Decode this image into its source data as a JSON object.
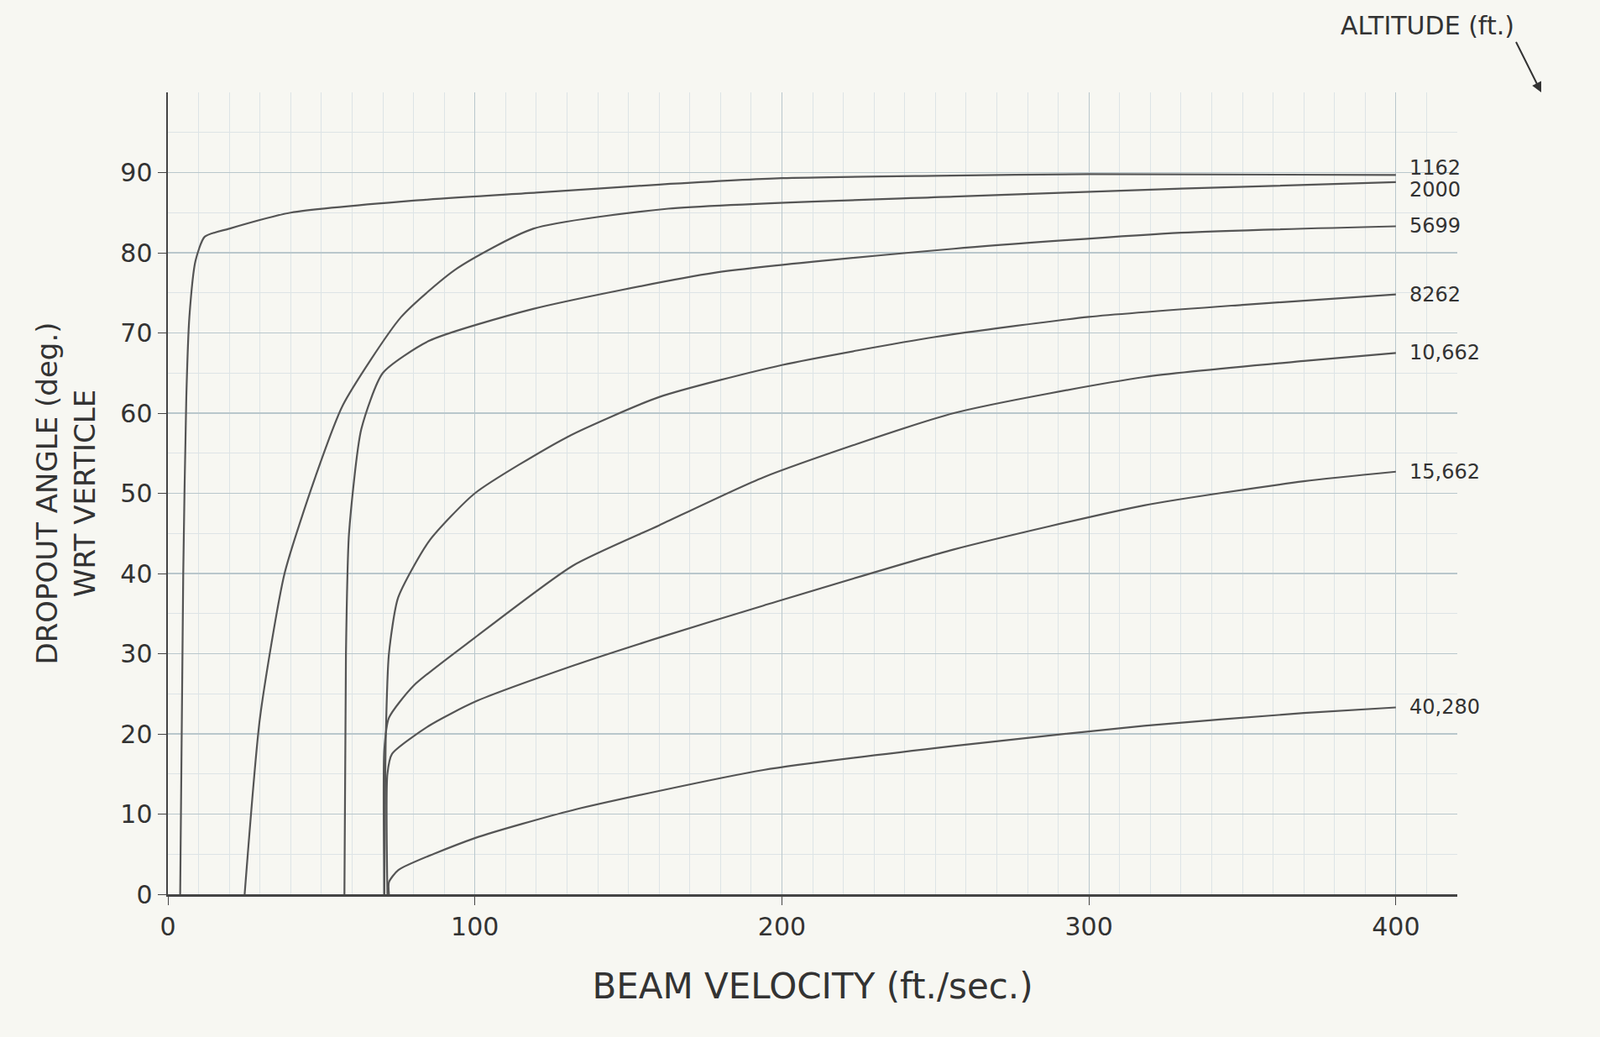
{
  "chart_data": {
    "type": "line",
    "x_label": "BEAM VELOCITY (ft./sec.)",
    "y_label": [
      "DROPOUT ANGLE (deg.)",
      "WRT VERTICLE"
    ],
    "annotations": [
      "ALTITUDE (ft.)"
    ],
    "xlim": [
      0,
      420
    ],
    "xticks": [
      0,
      100,
      200,
      300,
      400
    ],
    "ylim": [
      0,
      100
    ],
    "yticks": [
      0,
      10,
      20,
      30,
      40,
      50,
      60,
      70,
      80,
      90
    ],
    "grid": true,
    "color": "#555555",
    "series": [
      {
        "name": "1162",
        "x": [
          4,
          5,
          6,
          7,
          9,
          12,
          20,
          40,
          80,
          120,
          160,
          200,
          250,
          300,
          400
        ],
        "values": [
          0,
          40,
          62,
          72,
          79,
          82,
          83,
          85,
          86.5,
          87.5,
          88.5,
          89.3,
          89.6,
          89.8,
          89.7
        ]
      },
      {
        "name": "2000",
        "x": [
          25,
          30,
          38,
          48,
          57,
          76,
          94,
          119,
          163,
          256,
          330,
          400
        ],
        "values": [
          0,
          22,
          40,
          52,
          61,
          72,
          78,
          83,
          85.5,
          87,
          88,
          88.8
        ]
      },
      {
        "name": "5699",
        "x": [
          57.5,
          58,
          59,
          63,
          70,
          85,
          119,
          178,
          256,
          330,
          400
        ],
        "values": [
          0,
          30,
          45,
          58,
          65,
          69,
          73,
          77.5,
          80.5,
          82.5,
          83.3
        ]
      },
      {
        "name": "8262",
        "x": [
          70.5,
          71,
          72,
          75,
          85,
          100,
          130,
          160,
          200,
          250,
          300,
          350,
          400
        ],
        "values": [
          0,
          20,
          30,
          37,
          44,
          50,
          57,
          62,
          66,
          69.5,
          72,
          73.5,
          74.8
        ]
      },
      {
        "name": "10,662",
        "x": [
          70.5,
          70.5,
          72,
          80,
          100,
          132,
          160,
          194,
          256,
          318,
          370,
          400
        ],
        "values": [
          0,
          18,
          22,
          26,
          32,
          41,
          46,
          52,
          60,
          64.5,
          66.5,
          67.5
        ]
      },
      {
        "name": "15,662",
        "x": [
          71.5,
          71.5,
          73,
          85,
          100,
          132,
          160,
          194,
          256,
          318,
          370,
          400
        ],
        "values": [
          0,
          15,
          17.5,
          21,
          24,
          28.5,
          32,
          36,
          43,
          48.5,
          51.5,
          52.7
        ]
      },
      {
        "name": "40,280",
        "x": [
          72,
          72,
          75,
          100,
          132,
          194,
          256,
          318,
          370,
          400
        ],
        "values": [
          0,
          1.5,
          3,
          7,
          10.5,
          15.5,
          18.5,
          21,
          22.6,
          23.3
        ]
      }
    ]
  }
}
